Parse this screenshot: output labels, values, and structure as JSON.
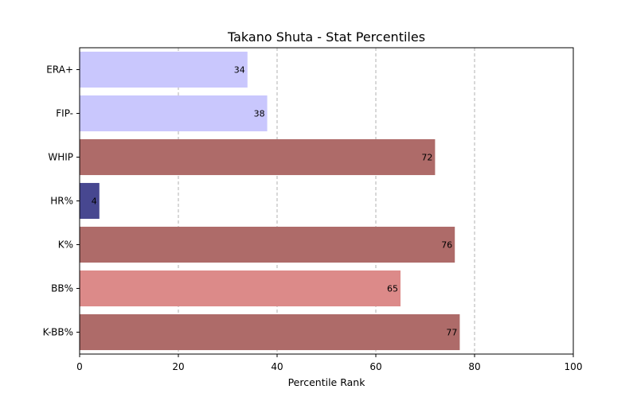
{
  "chart_data": {
    "type": "bar",
    "orientation": "horizontal",
    "title": "Takano Shuta - Stat Percentiles",
    "xlabel": "Percentile Rank",
    "ylabel": "",
    "xlim": [
      0,
      100
    ],
    "xticks": [
      0,
      20,
      40,
      60,
      80,
      100
    ],
    "grid": "x-dashed",
    "categories": [
      "ERA+",
      "FIP-",
      "WHIP",
      "HR%",
      "K%",
      "BB%",
      "K-BB%"
    ],
    "values": [
      34,
      38,
      72,
      4,
      76,
      65,
      77
    ],
    "colors": [
      "#c9c7fd",
      "#c9c7fd",
      "#ae6b69",
      "#474790",
      "#ae6b69",
      "#dc8a89",
      "#ae6b69"
    ]
  }
}
